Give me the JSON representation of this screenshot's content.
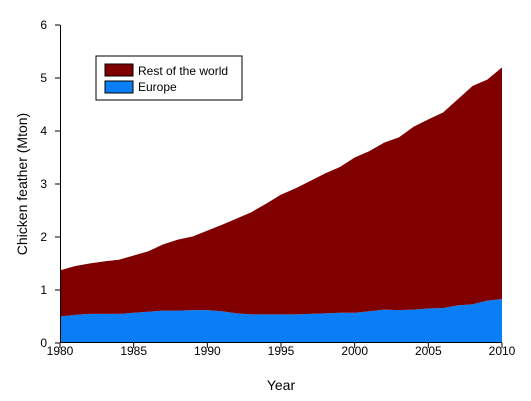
{
  "chart_data": {
    "type": "area",
    "stacked": true,
    "title": "",
    "xlabel": "Year",
    "ylabel": "Chicken feather (Mton)",
    "xlim": [
      1980,
      2010
    ],
    "ylim": [
      0,
      6
    ],
    "x_ticks": [
      "1980",
      "1985",
      "1990",
      "1995",
      "2000",
      "2005",
      "2010"
    ],
    "y_ticks": [
      "0",
      "1",
      "2",
      "3",
      "4",
      "5",
      "6"
    ],
    "grid": false,
    "legend_position": "top-left",
    "x": [
      1980,
      1981,
      1982,
      1983,
      1984,
      1985,
      1986,
      1987,
      1988,
      1989,
      1990,
      1991,
      1992,
      1993,
      1994,
      1995,
      1996,
      1997,
      1998,
      1999,
      2000,
      2001,
      2002,
      2003,
      2004,
      2005,
      2006,
      2007,
      2008,
      2009,
      2010
    ],
    "series": [
      {
        "name": "Europe",
        "color": "#0a7ff5",
        "values": [
          0.5,
          0.53,
          0.55,
          0.55,
          0.55,
          0.57,
          0.59,
          0.61,
          0.61,
          0.62,
          0.62,
          0.6,
          0.56,
          0.54,
          0.54,
          0.54,
          0.54,
          0.55,
          0.56,
          0.57,
          0.57,
          0.6,
          0.63,
          0.62,
          0.63,
          0.65,
          0.66,
          0.71,
          0.73,
          0.8,
          0.83
        ]
      },
      {
        "name": "Rest of the world",
        "color": "#800000",
        "values": [
          0.87,
          0.92,
          0.95,
          0.99,
          1.02,
          1.08,
          1.14,
          1.25,
          1.34,
          1.39,
          1.5,
          1.63,
          1.79,
          1.93,
          2.09,
          2.26,
          2.38,
          2.51,
          2.64,
          2.75,
          2.93,
          3.02,
          3.15,
          3.26,
          3.45,
          3.57,
          3.69,
          3.89,
          4.12,
          4.17,
          4.37
        ]
      }
    ],
    "legend": [
      {
        "name": "Rest of the world",
        "color": "#800000"
      },
      {
        "name": "Europe",
        "color": "#0a7ff5"
      }
    ]
  }
}
